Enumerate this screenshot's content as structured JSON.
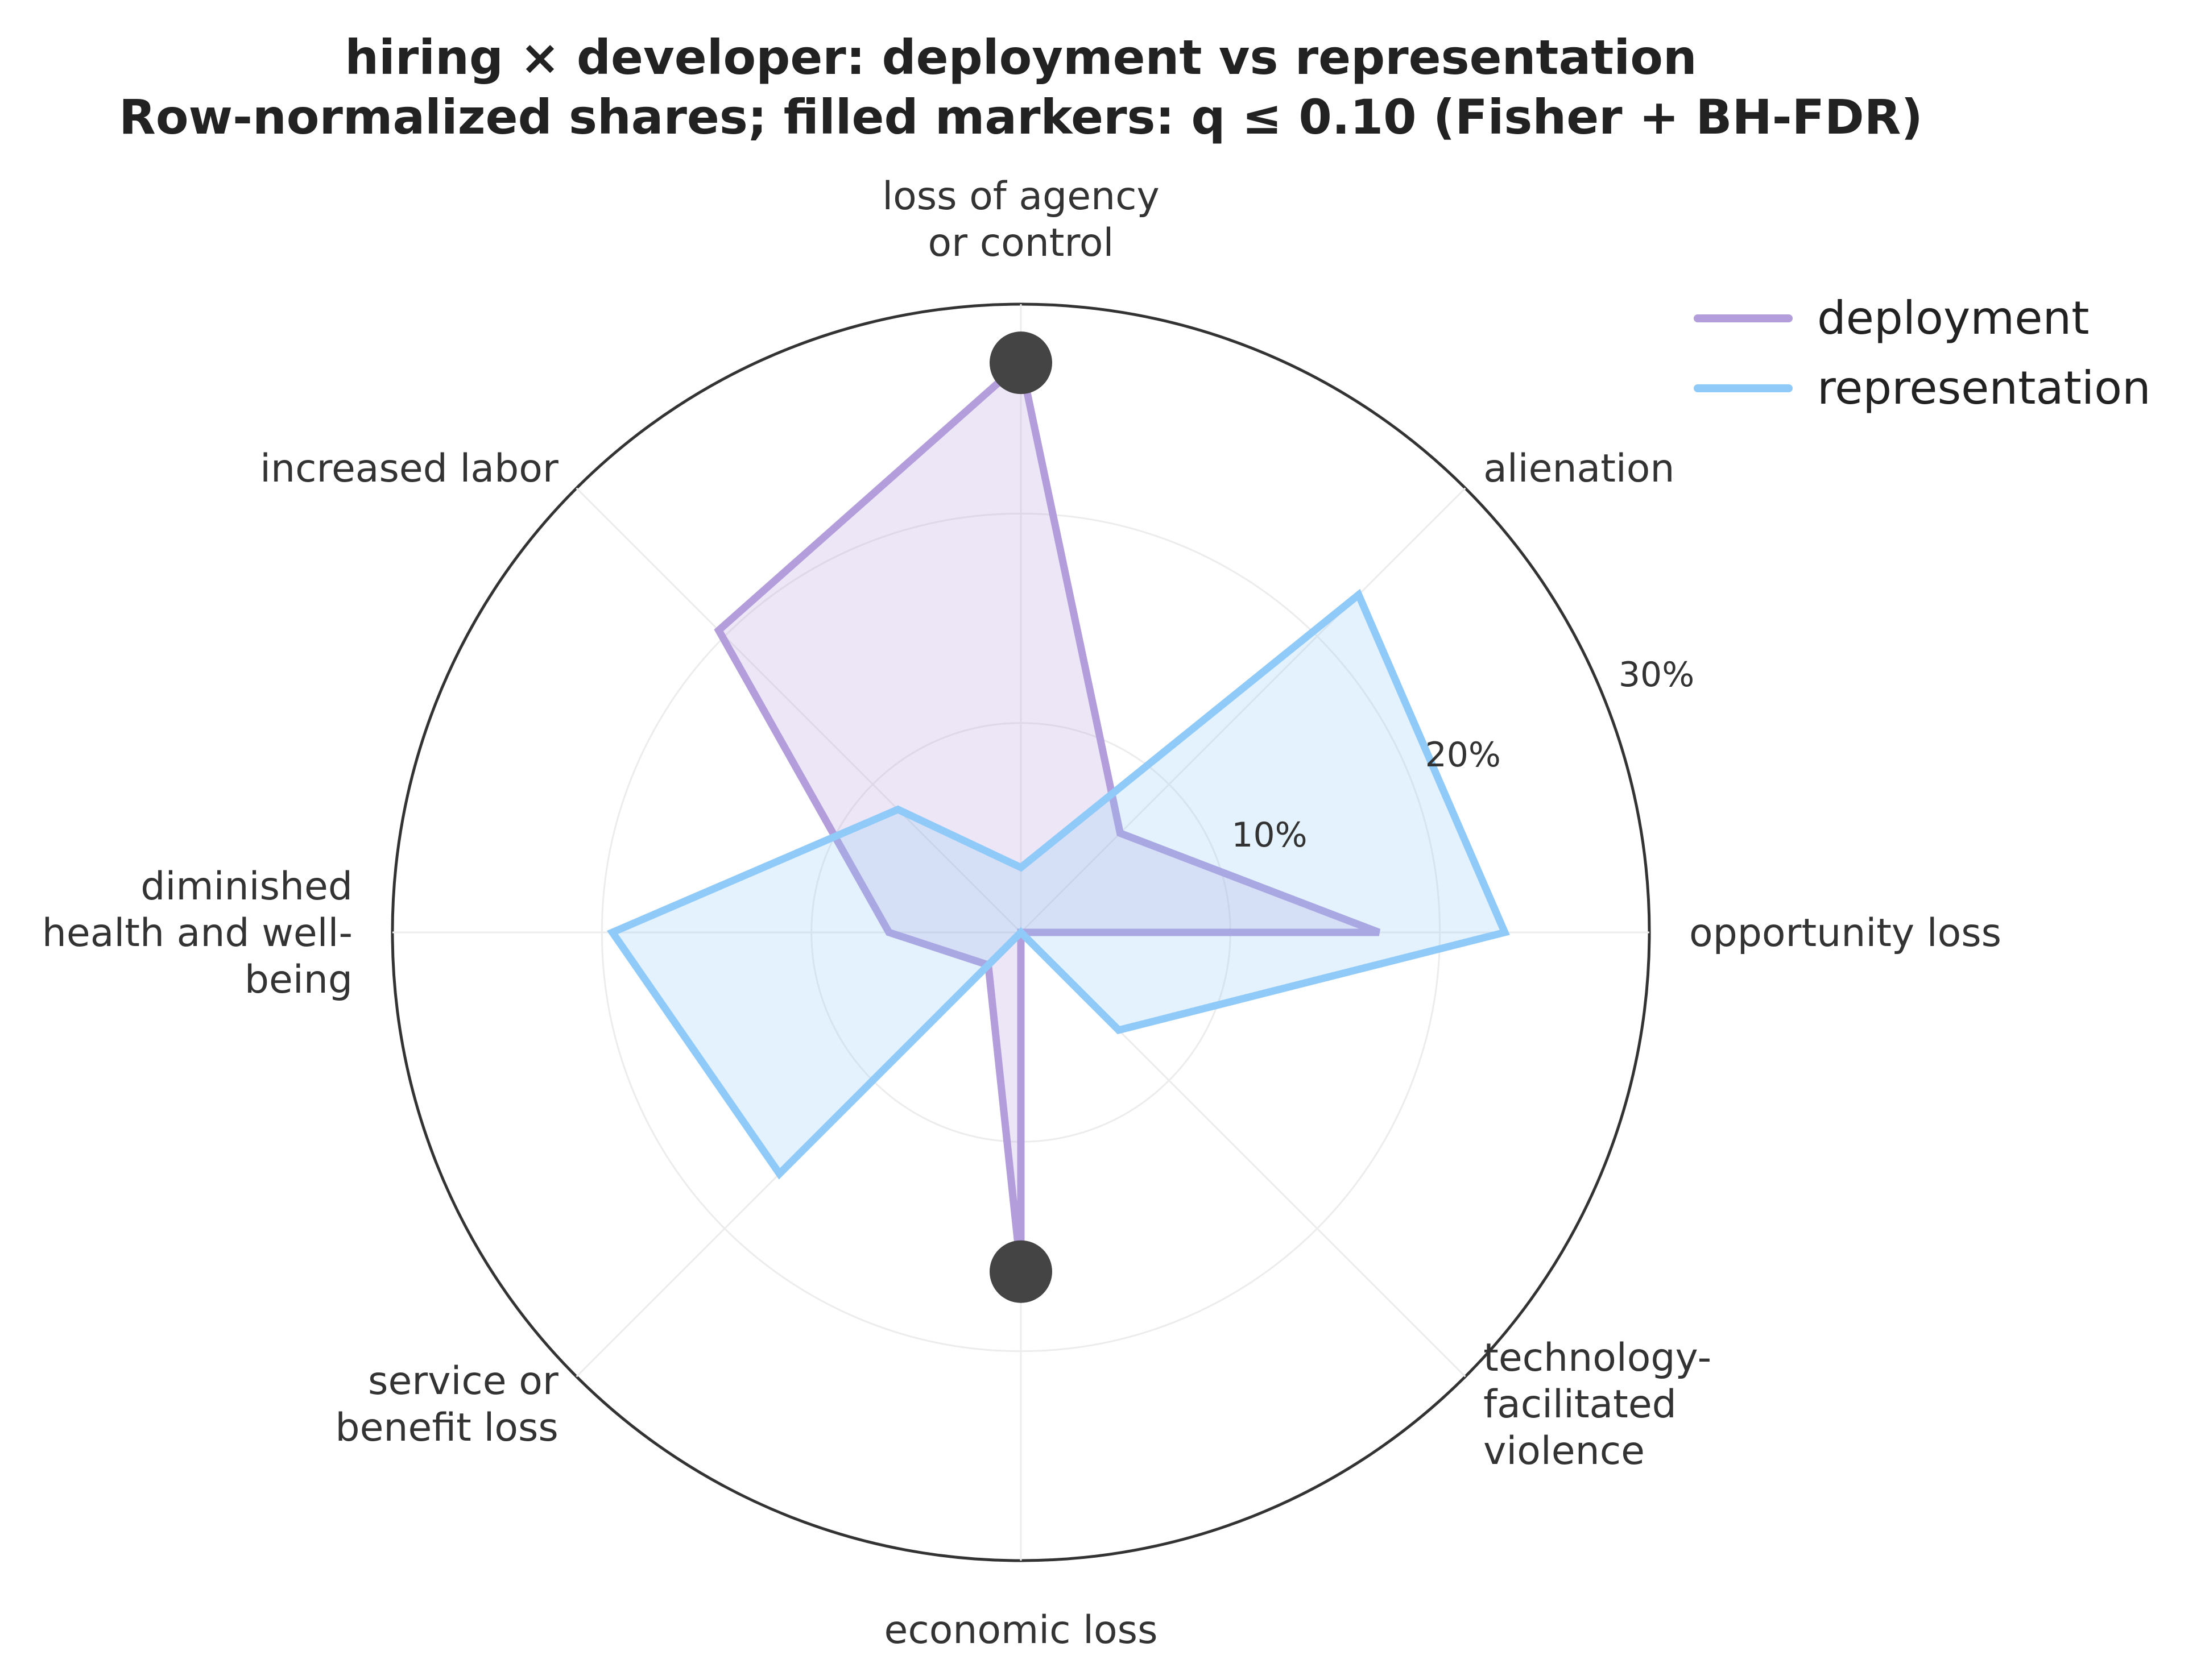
{
  "chart_data": {
    "type": "radar",
    "title": "hiring × developer: deployment vs representation",
    "subtitle": "Row-normalized shares; filled markers: q ≤ 0.10 (Fisher + BH-FDR)",
    "categories": [
      "opportunity loss",
      "alienation",
      "loss of agency or control",
      "increased labor",
      "diminished health and well-being",
      "service or benefit loss",
      "economic loss",
      "technology-facilitated violence"
    ],
    "category_label_lines": [
      [
        "opportunity loss"
      ],
      [
        "alienation"
      ],
      [
        "loss of agency",
        "or control"
      ],
      [
        "increased labor"
      ],
      [
        "diminished",
        "health and well-",
        "being"
      ],
      [
        "service or",
        "benefit loss"
      ],
      [
        "economic loss"
      ],
      [
        "technology-",
        "facilitated",
        "violence"
      ]
    ],
    "series": [
      {
        "name": "deployment",
        "color": "#b39ddb",
        "values": [
          17.1,
          6.7,
          27.2,
          20.4,
          6.3,
          2.2,
          16.2,
          0.0
        ],
        "significant": [
          false,
          false,
          true,
          false,
          false,
          false,
          true,
          false
        ]
      },
      {
        "name": "representation",
        "color": "#90caf9",
        "values": [
          23.1,
          22.8,
          3.1,
          8.3,
          19.5,
          16.3,
          0.0,
          6.6
        ],
        "significant": [
          false,
          false,
          false,
          false,
          false,
          false,
          false,
          false
        ]
      }
    ],
    "rlim": [
      0,
      30
    ],
    "radial_ticks": [
      10,
      20,
      30
    ],
    "radial_tick_labels": [
      "10%",
      "20%",
      "30%"
    ],
    "grid": true,
    "legend_position": "top-right",
    "marker_color": "#444444"
  }
}
